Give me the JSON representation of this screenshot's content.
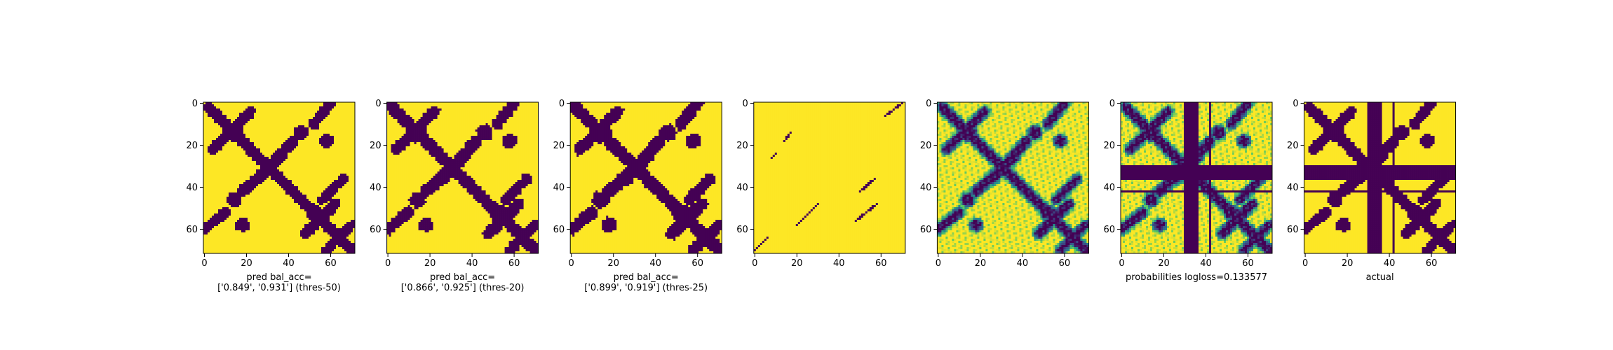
{
  "chart_data": [
    {
      "type": "heatmap",
      "title": "",
      "xlabel": "pred bal_acc=\n['0.849', '0.931'] (thres-50)",
      "ylabel": "",
      "x_ticks": [
        0,
        20,
        40,
        60
      ],
      "y_ticks": [
        0,
        20,
        40,
        60
      ],
      "grid_size": 72,
      "colormap": "viridis",
      "value_range": [
        0,
        1
      ],
      "pattern": "binary-contacts-a"
    },
    {
      "type": "heatmap",
      "title": "",
      "xlabel": "pred bal_acc=\n['0.866', '0.925'] (thres-20)",
      "ylabel": "",
      "x_ticks": [
        0,
        20,
        40,
        60
      ],
      "y_ticks": [
        0,
        20,
        40,
        60
      ],
      "grid_size": 72,
      "colormap": "viridis",
      "value_range": [
        0,
        1
      ],
      "pattern": "binary-contacts-b"
    },
    {
      "type": "heatmap",
      "title": "",
      "xlabel": "pred bal_acc=\n['0.899', '0.919'] (thres-25)",
      "ylabel": "",
      "x_ticks": [
        0,
        20,
        40,
        60
      ],
      "y_ticks": [
        0,
        20,
        40,
        60
      ],
      "grid_size": 72,
      "colormap": "viridis",
      "value_range": [
        0,
        1
      ],
      "pattern": "binary-contacts-c"
    },
    {
      "type": "heatmap",
      "title": "",
      "xlabel": "",
      "ylabel": "",
      "x_ticks": [
        0,
        20,
        40,
        60
      ],
      "y_ticks": [
        0,
        20,
        40,
        60
      ],
      "grid_size": 72,
      "colormap": "viridis",
      "value_range": [
        0,
        1
      ],
      "pattern": "sparse-diagonals"
    },
    {
      "type": "heatmap",
      "title": "",
      "xlabel": "",
      "ylabel": "",
      "x_ticks": [
        0,
        20,
        40,
        60
      ],
      "y_ticks": [
        0,
        20,
        40,
        60
      ],
      "grid_size": 72,
      "colormap": "viridis",
      "value_range": [
        0,
        1
      ],
      "pattern": "continuous-probabilities"
    },
    {
      "type": "heatmap",
      "title": "",
      "xlabel": "probabilities logloss=0.133577",
      "ylabel": "",
      "x_ticks": [
        0,
        20,
        40,
        60
      ],
      "y_ticks": [
        0,
        20,
        40,
        60
      ],
      "grid_size": 72,
      "colormap": "viridis",
      "value_range": [
        0,
        1
      ],
      "pattern": "probabilities-with-masked-bands"
    },
    {
      "type": "heatmap",
      "title": "",
      "xlabel": "actual",
      "ylabel": "",
      "x_ticks": [
        0,
        20,
        40,
        60
      ],
      "y_ticks": [
        0,
        20,
        40,
        60
      ],
      "grid_size": 72,
      "colormap": "viridis",
      "value_range": [
        0,
        1
      ],
      "pattern": "actual-contacts-with-bands"
    }
  ]
}
